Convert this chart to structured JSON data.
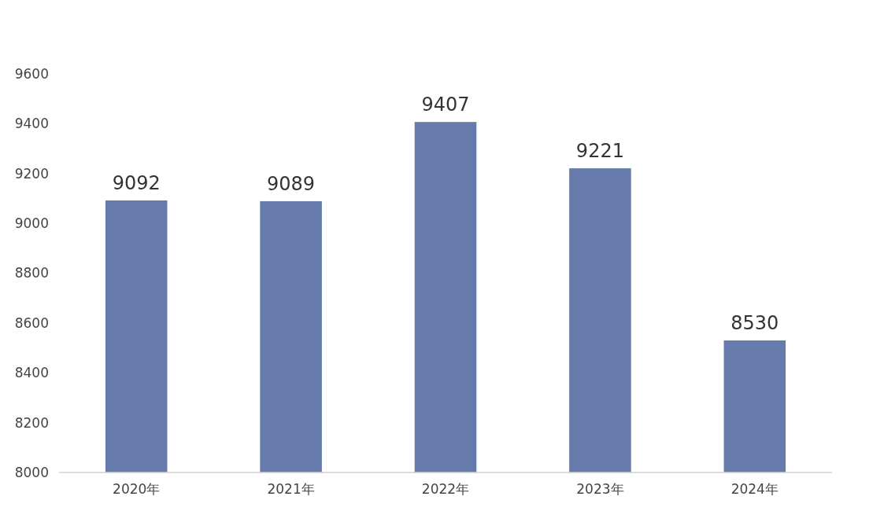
{
  "chart_data": {
    "type": "bar",
    "categories": [
      "2020年",
      "2021年",
      "2022年",
      "2023年",
      "2024年"
    ],
    "values": [
      9092,
      9089,
      9407,
      9221,
      8530
    ],
    "color": "#667bab",
    "ylim": [
      8000,
      9600
    ],
    "yticks": [
      8000,
      8200,
      8400,
      8600,
      8800,
      9000,
      9200,
      9400,
      9600
    ],
    "data_labels": true,
    "grid": false
  }
}
